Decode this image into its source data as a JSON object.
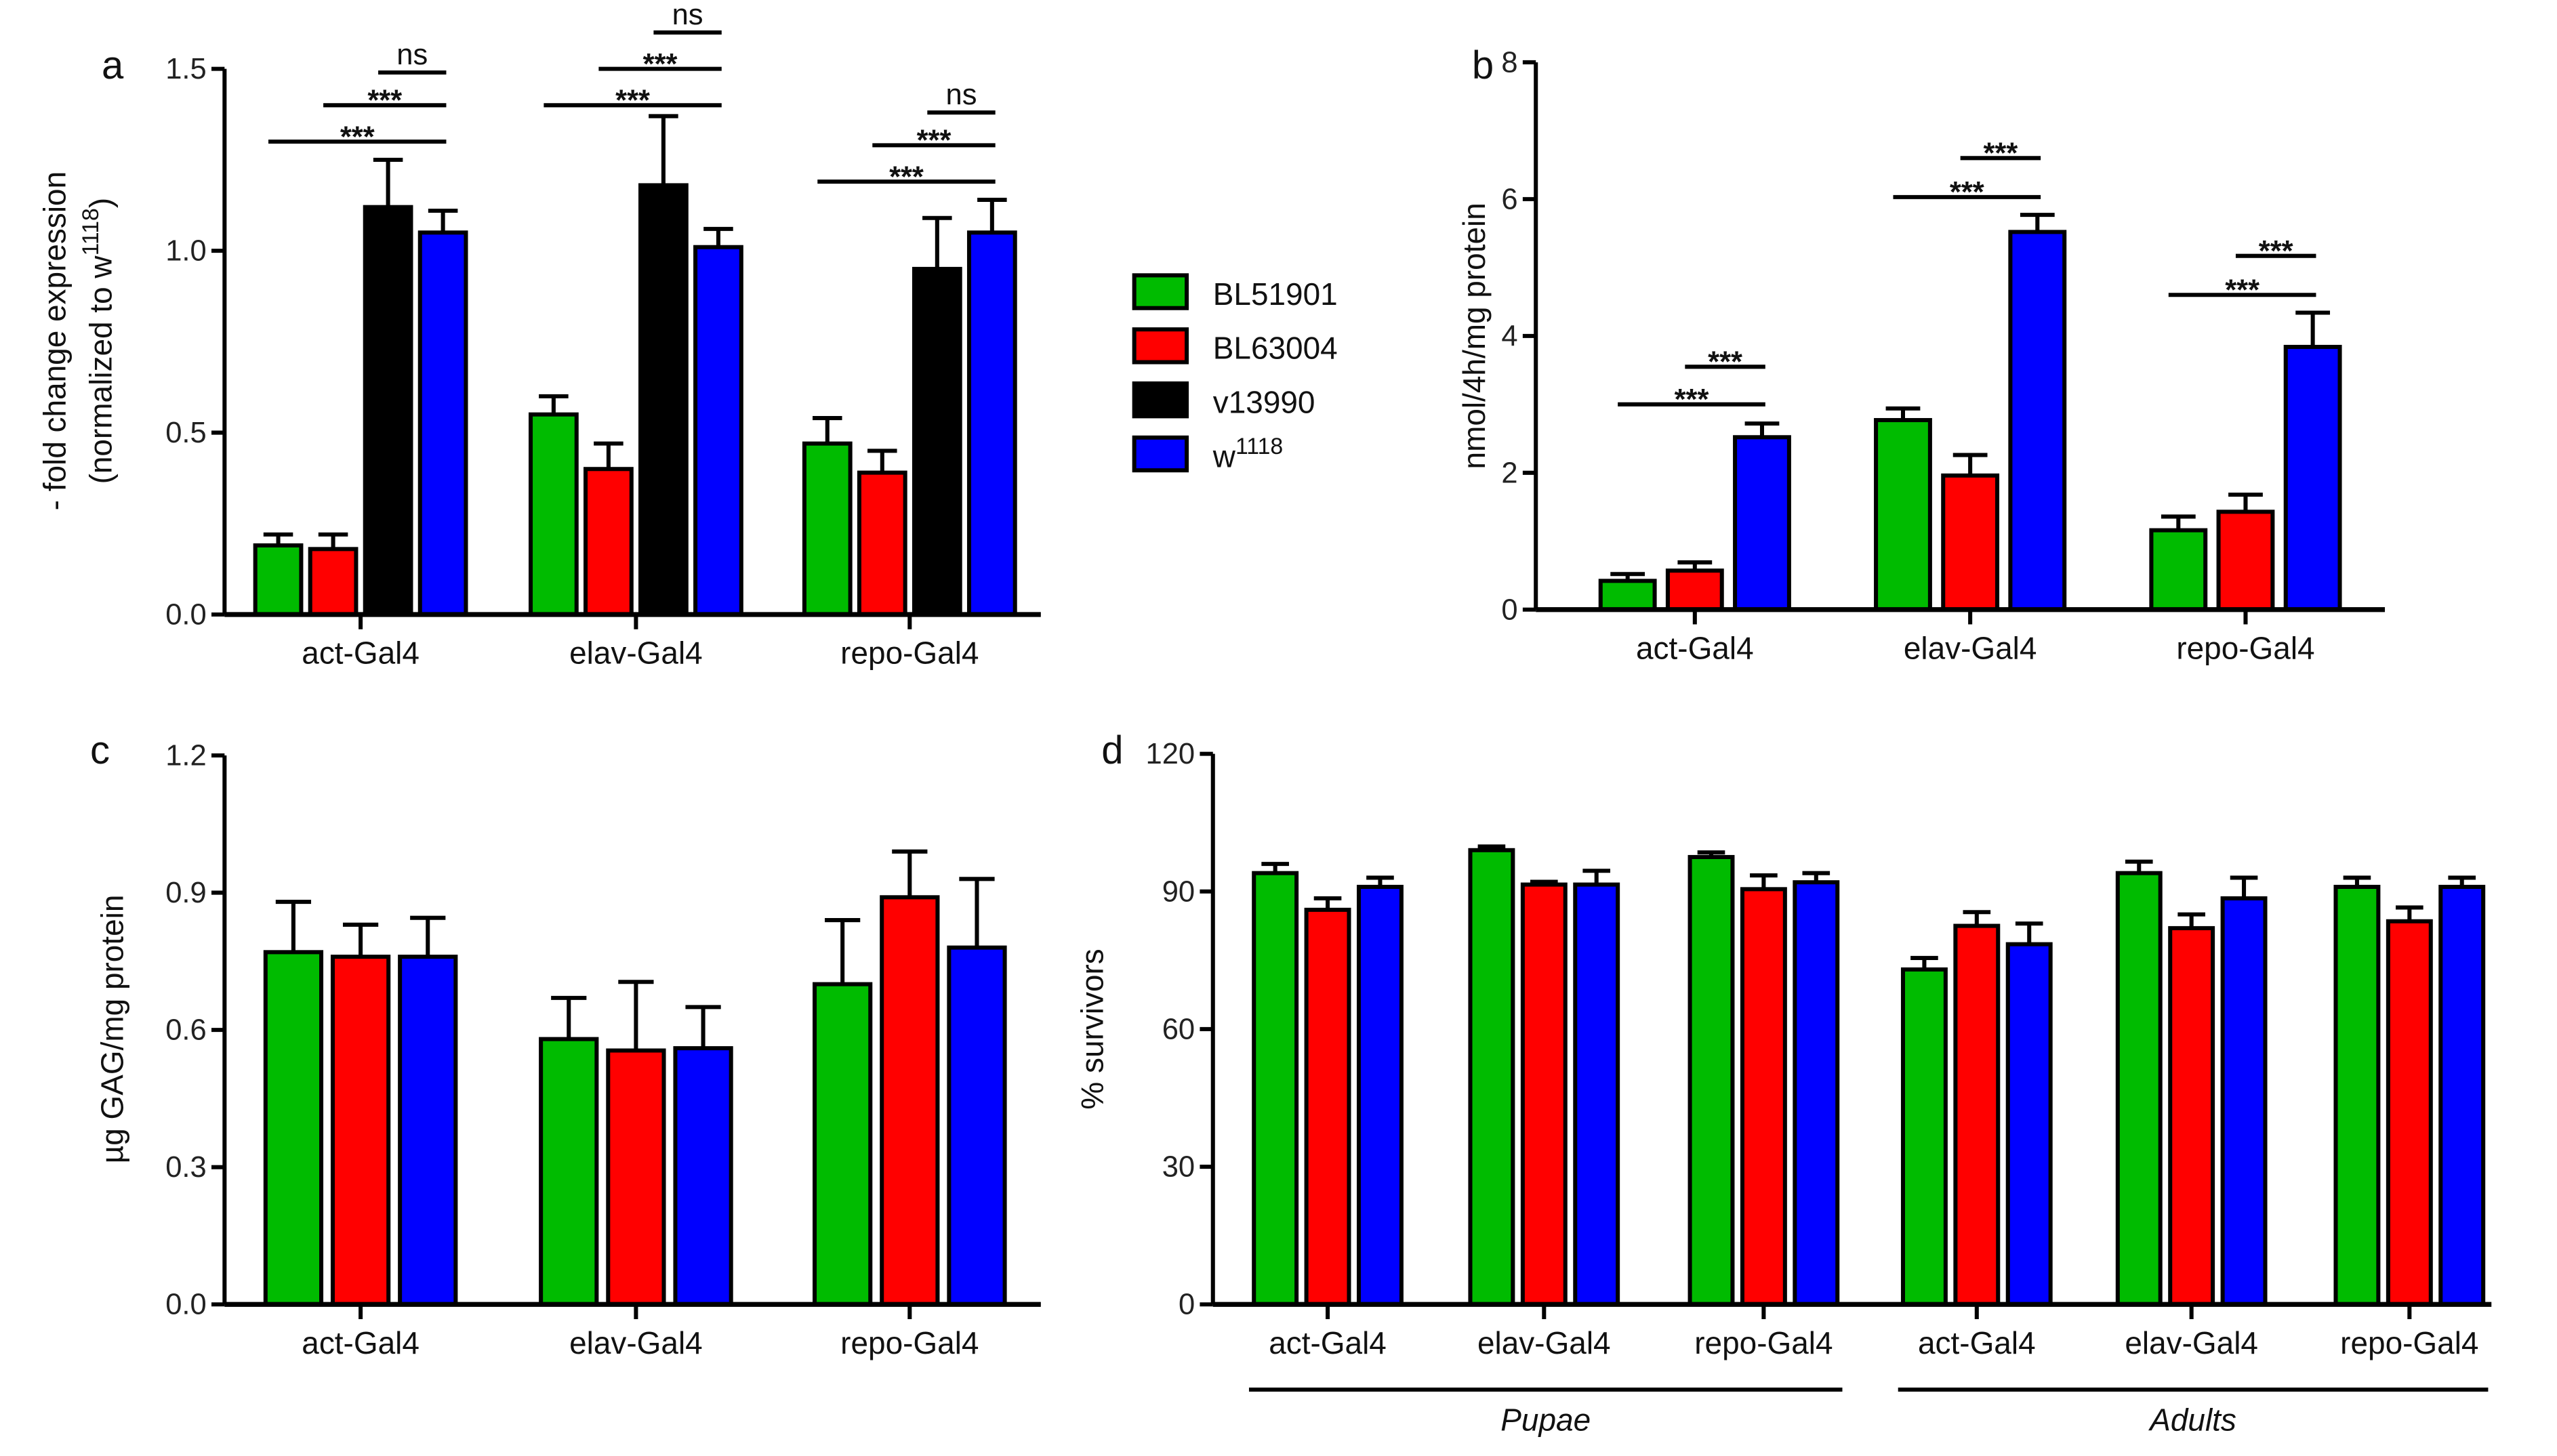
{
  "legend": [
    {
      "label": "BL51901",
      "sup": "",
      "color": "#00bb00"
    },
    {
      "label": "BL63004",
      "sup": "",
      "color": "#ff0000"
    },
    {
      "label": "v13990",
      "sup": "",
      "color": "#000000"
    },
    {
      "label": "w",
      "sup": "1118",
      "color": "#0000ff"
    }
  ],
  "chart_data": [
    {
      "panel": "a",
      "type": "bar",
      "ylabel": "- fold change expression",
      "ylabel2": {
        "text": "(normalized to w",
        "sup": "1118",
        "tail": ")"
      },
      "ylim": [
        0,
        1.5
      ],
      "yticks": [
        "0.0",
        "0.5",
        "1.0",
        "1.5"
      ],
      "categories": [
        "act-Gal4",
        "elav-Gal4",
        "repo-Gal4"
      ],
      "series": [
        {
          "name": "BL51901",
          "color": "#00bb00",
          "values": [
            0.19,
            0.55,
            0.47
          ],
          "errors": [
            0.03,
            0.05,
            0.07
          ]
        },
        {
          "name": "BL63004",
          "color": "#ff0000",
          "values": [
            0.18,
            0.4,
            0.39
          ],
          "errors": [
            0.04,
            0.07,
            0.06
          ]
        },
        {
          "name": "v13990",
          "color": "#000000",
          "values": [
            1.12,
            1.18,
            0.95
          ],
          "errors": [
            0.13,
            0.19,
            0.14
          ]
        },
        {
          "name": "w1118",
          "color": "#0000ff",
          "values": [
            1.05,
            1.01,
            1.05
          ],
          "errors": [
            0.06,
            0.05,
            0.09
          ]
        }
      ],
      "significance": [
        {
          "category": 0,
          "from": 0,
          "to": 3,
          "y": 1.3,
          "label": "***"
        },
        {
          "category": 0,
          "from": 1,
          "to": 3,
          "y": 1.4,
          "label": "***"
        },
        {
          "category": 0,
          "from": 2,
          "to": 3,
          "y": 1.49,
          "label": "ns"
        },
        {
          "category": 1,
          "from": 0,
          "to": 3,
          "y": 1.4,
          "label": "***"
        },
        {
          "category": 1,
          "from": 1,
          "to": 3,
          "y": 1.5,
          "label": "***"
        },
        {
          "category": 1,
          "from": 2,
          "to": 3,
          "y": 1.6,
          "label": "ns"
        },
        {
          "category": 2,
          "from": 0,
          "to": 3,
          "y": 1.19,
          "label": "***"
        },
        {
          "category": 2,
          "from": 1,
          "to": 3,
          "y": 1.29,
          "label": "***"
        },
        {
          "category": 2,
          "from": 2,
          "to": 3,
          "y": 1.38,
          "label": "ns"
        }
      ]
    },
    {
      "panel": "b",
      "type": "bar",
      "ylabel": "nmol/4h/mg protein",
      "ylim": [
        0,
        8
      ],
      "yticks": [
        "0",
        "2",
        "4",
        "6",
        "8"
      ],
      "categories": [
        "act-Gal4",
        "elav-Gal4",
        "repo-Gal4"
      ],
      "series": [
        {
          "name": "BL51901",
          "color": "#00bb00",
          "values": [
            0.42,
            2.77,
            1.16
          ],
          "errors": [
            0.1,
            0.17,
            0.2
          ]
        },
        {
          "name": "BL63004",
          "color": "#ff0000",
          "values": [
            0.57,
            1.96,
            1.43
          ],
          "errors": [
            0.12,
            0.3,
            0.25
          ]
        },
        {
          "name": "w1118",
          "color": "#0000ff",
          "values": [
            2.52,
            5.52,
            3.84
          ],
          "errors": [
            0.2,
            0.25,
            0.5
          ]
        }
      ],
      "significance": [
        {
          "category": 0,
          "from": 0,
          "to": 2,
          "y": 3.0,
          "label": "***"
        },
        {
          "category": 0,
          "from": 1,
          "to": 2,
          "y": 3.55,
          "label": "***"
        },
        {
          "category": 1,
          "from": 0,
          "to": 2,
          "y": 6.03,
          "label": "***"
        },
        {
          "category": 1,
          "from": 1,
          "to": 2,
          "y": 6.6,
          "label": "***"
        },
        {
          "category": 2,
          "from": 0,
          "to": 2,
          "y": 4.6,
          "label": "***"
        },
        {
          "category": 2,
          "from": 1,
          "to": 2,
          "y": 5.17,
          "label": "***"
        }
      ]
    },
    {
      "panel": "c",
      "type": "bar",
      "ylabel": "µg GAG/mg protein",
      "ylim": [
        0,
        1.2
      ],
      "yticks": [
        "0.0",
        "0.3",
        "0.6",
        "0.9",
        "1.2"
      ],
      "categories": [
        "act-Gal4",
        "elav-Gal4",
        "repo-Gal4"
      ],
      "series": [
        {
          "name": "BL51901",
          "color": "#00bb00",
          "values": [
            0.77,
            0.58,
            0.7
          ],
          "errors": [
            0.11,
            0.09,
            0.14
          ]
        },
        {
          "name": "BL63004",
          "color": "#ff0000",
          "values": [
            0.76,
            0.555,
            0.89
          ],
          "errors": [
            0.07,
            0.15,
            0.1
          ]
        },
        {
          "name": "w1118",
          "color": "#0000ff",
          "values": [
            0.76,
            0.56,
            0.78
          ],
          "errors": [
            0.085,
            0.09,
            0.15
          ]
        }
      ],
      "significance": []
    },
    {
      "panel": "d",
      "type": "bar",
      "ylabel": "% survivors",
      "ylim": [
        0,
        120
      ],
      "yticks": [
        "0",
        "30",
        "60",
        "90",
        "120"
      ],
      "categories": [
        "act-Gal4",
        "elav-Gal4",
        "repo-Gal4",
        "act-Gal4",
        "elav-Gal4",
        "repo-Gal4"
      ],
      "groups": [
        {
          "label": "Pupae",
          "from": 0,
          "to": 2
        },
        {
          "label": "Adults",
          "from": 3,
          "to": 5
        }
      ],
      "series": [
        {
          "name": "BL51901",
          "color": "#00bb00",
          "values": [
            94,
            99,
            97.5,
            73,
            94,
            91
          ],
          "errors": [
            2,
            0.8,
            1,
            2.5,
            2.5,
            2
          ]
        },
        {
          "name": "BL63004",
          "color": "#ff0000",
          "values": [
            86,
            91.5,
            90.5,
            82.5,
            82,
            83.5
          ],
          "errors": [
            2.5,
            0.6,
            3,
            3,
            3,
            3
          ]
        },
        {
          "name": "w1118",
          "color": "#0000ff",
          "values": [
            91,
            91.5,
            92,
            78.5,
            88.5,
            91
          ],
          "errors": [
            2,
            3,
            2,
            4.5,
            4.5,
            2
          ]
        }
      ],
      "significance": []
    }
  ]
}
